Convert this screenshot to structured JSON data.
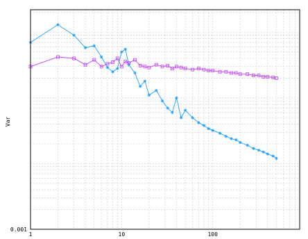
{
  "chart_data": {
    "type": "line",
    "title": "",
    "xlabel": "",
    "ylabel": "Var",
    "x_scale": "log",
    "y_scale": "log",
    "xlim": [
      1,
      900
    ],
    "ylim": [
      0.001,
      2.2
    ],
    "x_ticks": [
      {
        "value": 1,
        "label": "1"
      },
      {
        "value": 10,
        "label": "10"
      },
      {
        "value": 100,
        "label": "100"
      }
    ],
    "y_ticks": [
      {
        "value": 0.001,
        "label": "0.001"
      }
    ],
    "grid": true,
    "legend": "none",
    "series": [
      {
        "color": "#1ea0ff",
        "marker": "star",
        "points": [
          [
            1,
            0.7
          ],
          [
            2,
            1.3
          ],
          [
            3,
            0.9
          ],
          [
            4,
            0.58
          ],
          [
            5,
            0.62
          ],
          [
            6,
            0.42
          ],
          [
            7,
            0.29
          ],
          [
            8,
            0.25
          ],
          [
            9,
            0.28
          ],
          [
            10,
            0.5
          ],
          [
            11,
            0.55
          ],
          [
            12,
            0.32
          ],
          [
            14,
            0.24
          ],
          [
            16,
            0.15
          ],
          [
            18,
            0.18
          ],
          [
            20,
            0.11
          ],
          [
            24,
            0.13
          ],
          [
            28,
            0.09
          ],
          [
            32,
            0.07
          ],
          [
            36,
            0.06
          ],
          [
            40,
            0.1
          ],
          [
            45,
            0.05
          ],
          [
            50,
            0.065
          ],
          [
            60,
            0.05
          ],
          [
            70,
            0.042
          ],
          [
            80,
            0.038
          ],
          [
            90,
            0.034
          ],
          [
            100,
            0.032
          ],
          [
            120,
            0.029
          ],
          [
            140,
            0.026
          ],
          [
            160,
            0.024
          ],
          [
            180,
            0.023
          ],
          [
            200,
            0.021
          ],
          [
            240,
            0.019
          ],
          [
            280,
            0.017
          ],
          [
            320,
            0.016
          ],
          [
            360,
            0.015
          ],
          [
            400,
            0.014
          ],
          [
            460,
            0.013
          ],
          [
            500,
            0.012
          ]
        ]
      },
      {
        "color": "#c040ff",
        "marker": "square",
        "points": [
          [
            1,
            0.3
          ],
          [
            2,
            0.42
          ],
          [
            3,
            0.4
          ],
          [
            4,
            0.32
          ],
          [
            5,
            0.38
          ],
          [
            6,
            0.3
          ],
          [
            7,
            0.33
          ],
          [
            8,
            0.35
          ],
          [
            9,
            0.4
          ],
          [
            10,
            0.3
          ],
          [
            11,
            0.36
          ],
          [
            12,
            0.34
          ],
          [
            14,
            0.38
          ],
          [
            16,
            0.31
          ],
          [
            18,
            0.3
          ],
          [
            20,
            0.29
          ],
          [
            24,
            0.32
          ],
          [
            28,
            0.3
          ],
          [
            32,
            0.31
          ],
          [
            36,
            0.28
          ],
          [
            40,
            0.3
          ],
          [
            45,
            0.29
          ],
          [
            50,
            0.28
          ],
          [
            60,
            0.27
          ],
          [
            70,
            0.28
          ],
          [
            80,
            0.27
          ],
          [
            90,
            0.26
          ],
          [
            100,
            0.26
          ],
          [
            120,
            0.25
          ],
          [
            140,
            0.25
          ],
          [
            160,
            0.24
          ],
          [
            180,
            0.24
          ],
          [
            200,
            0.23
          ],
          [
            240,
            0.23
          ],
          [
            280,
            0.22
          ],
          [
            320,
            0.22
          ],
          [
            360,
            0.21
          ],
          [
            400,
            0.21
          ],
          [
            460,
            0.205
          ],
          [
            500,
            0.2
          ]
        ]
      }
    ]
  }
}
